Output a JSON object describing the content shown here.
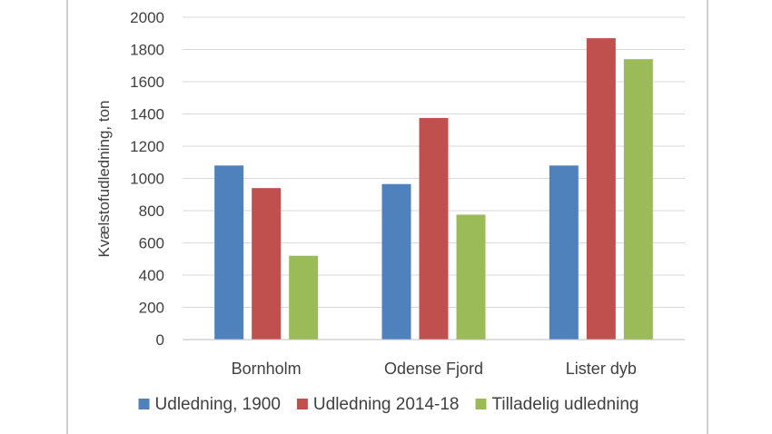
{
  "chart_data": {
    "type": "bar",
    "title": "",
    "xlabel": "",
    "ylabel": "Kvælstofudledning, ton",
    "ylim": [
      0,
      2000
    ],
    "yticks": [
      0,
      200,
      400,
      600,
      800,
      1000,
      1200,
      1400,
      1600,
      1800,
      2000
    ],
    "grid": true,
    "legend_position": "bottom",
    "categories": [
      "Bornholm",
      "Odense Fjord",
      "Lister dyb"
    ],
    "series": [
      {
        "name": "Udledning, 1900",
        "color": "#4f81bd",
        "values": [
          1080,
          965,
          1080
        ]
      },
      {
        "name": "Udledning 2014-18",
        "color": "#c0504d",
        "values": [
          940,
          1375,
          1870
        ]
      },
      {
        "name": "Tilladelig udledning",
        "color": "#9bbb59",
        "values": [
          520,
          775,
          1740
        ]
      }
    ]
  }
}
